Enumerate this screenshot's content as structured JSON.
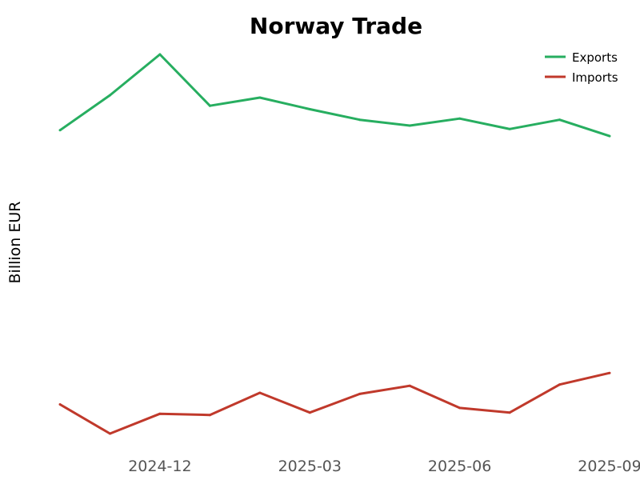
{
  "chart_data": {
    "type": "line",
    "title": "Norway Trade",
    "xlabel": "",
    "ylabel": "Billion EUR",
    "x": [
      "2024-10",
      "2024-11",
      "2024-12",
      "2025-01",
      "2025-02",
      "2025-03",
      "2025-04",
      "2025-05",
      "2025-06",
      "2025-07",
      "2025-08",
      "2025-09"
    ],
    "x_ticks": [
      "2024-12",
      "2025-03",
      "2025-06",
      "2025-09"
    ],
    "series": [
      {
        "name": "Exports",
        "color": "#27ae60",
        "values": [
          6.8,
          7.1,
          7.45,
          7.01,
          7.08,
          6.98,
          6.89,
          6.84,
          6.9,
          6.81,
          6.89,
          6.75
        ]
      },
      {
        "name": "Imports",
        "color": "#c0392b",
        "values": [
          4.45,
          4.2,
          4.37,
          4.36,
          4.55,
          4.38,
          4.54,
          4.61,
          4.42,
          4.38,
          4.62,
          4.72
        ]
      }
    ],
    "ylim": [
      4.2,
      7.45
    ],
    "grid": false,
    "legend": "top-right"
  }
}
